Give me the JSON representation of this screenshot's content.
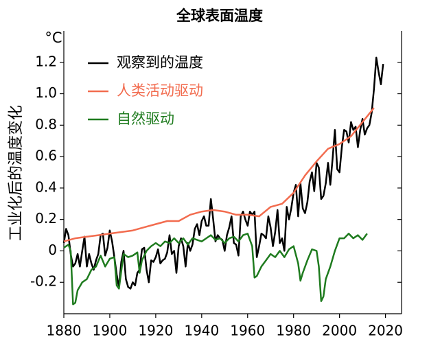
{
  "chart_data": {
    "type": "line",
    "title": "全球表面温度",
    "ylabel": "工业化后的温度变化",
    "yunit": "°C",
    "xlim": [
      1880,
      2027
    ],
    "ylim": [
      -0.4,
      1.4
    ],
    "xticks": [
      1880,
      1900,
      1920,
      1940,
      1960,
      1980,
      2000,
      2020
    ],
    "yticks": [
      -0.2,
      0,
      0.2,
      0.4,
      0.6,
      0.8,
      {
        "value": 1,
        "label": "1.0"
      },
      1.2
    ],
    "legend": "upper left",
    "series": [
      {
        "name": "观察到的温度",
        "color": "#000000",
        "x": [
          1880,
          1881,
          1882,
          1883,
          1884,
          1885,
          1886,
          1887,
          1888,
          1889,
          1890,
          1891,
          1892,
          1893,
          1894,
          1895,
          1896,
          1897,
          1898,
          1899,
          1900,
          1901,
          1902,
          1903,
          1904,
          1905,
          1906,
          1907,
          1908,
          1909,
          1910,
          1911,
          1912,
          1913,
          1914,
          1915,
          1916,
          1917,
          1918,
          1919,
          1920,
          1921,
          1922,
          1923,
          1924,
          1925,
          1926,
          1927,
          1928,
          1929,
          1930,
          1931,
          1932,
          1933,
          1934,
          1935,
          1936,
          1937,
          1938,
          1939,
          1940,
          1941,
          1942,
          1943,
          1944,
          1945,
          1946,
          1947,
          1948,
          1949,
          1950,
          1951,
          1952,
          1953,
          1954,
          1955,
          1956,
          1957,
          1958,
          1959,
          1960,
          1961,
          1962,
          1963,
          1964,
          1965,
          1966,
          1967,
          1968,
          1969,
          1970,
          1971,
          1972,
          1973,
          1974,
          1975,
          1976,
          1977,
          1978,
          1979,
          1980,
          1981,
          1982,
          1983,
          1984,
          1985,
          1986,
          1987,
          1988,
          1989,
          1990,
          1991,
          1992,
          1993,
          1994,
          1995,
          1996,
          1997,
          1998,
          1999,
          2000,
          2001,
          2002,
          2003,
          2004,
          2005,
          2006,
          2007,
          2008,
          2009,
          2010,
          2011,
          2012,
          2013,
          2014,
          2015,
          2016,
          2017,
          2018,
          2019
        ],
        "values": [
          0.05,
          0.14,
          0.1,
          -0.02,
          -0.1,
          -0.08,
          -0.02,
          -0.1,
          0.0,
          0.09,
          -0.1,
          -0.02,
          -0.08,
          -0.12,
          -0.06,
          -0.02,
          0.1,
          0.11,
          -0.03,
          0.02,
          0.13,
          0.06,
          -0.04,
          -0.15,
          -0.23,
          -0.07,
          0.0,
          -0.18,
          -0.23,
          -0.24,
          -0.2,
          -0.22,
          -0.14,
          -0.12,
          0.01,
          0.02,
          -0.12,
          -0.2,
          -0.06,
          -0.07,
          -0.04,
          0.01,
          -0.08,
          -0.06,
          -0.05,
          -0.01,
          0.1,
          -0.02,
          0.0,
          -0.14,
          0.03,
          0.08,
          0.03,
          -0.1,
          0.05,
          0.0,
          0.04,
          0.14,
          0.17,
          0.1,
          0.19,
          0.22,
          0.16,
          0.16,
          0.33,
          0.2,
          0.06,
          0.1,
          0.08,
          0.07,
          0.0,
          0.1,
          0.15,
          0.22,
          0.05,
          0.04,
          -0.03,
          0.22,
          0.25,
          0.2,
          0.16,
          0.25,
          0.23,
          0.25,
          -0.04,
          0.03,
          0.11,
          0.1,
          0.08,
          0.22,
          0.15,
          0.03,
          0.12,
          0.26,
          0.05,
          0.08,
          0.0,
          0.28,
          0.2,
          0.27,
          0.37,
          0.42,
          0.22,
          0.43,
          0.27,
          0.24,
          0.31,
          0.44,
          0.5,
          0.38,
          0.56,
          0.53,
          0.33,
          0.35,
          0.43,
          0.56,
          0.42,
          0.59,
          0.77,
          0.52,
          0.5,
          0.66,
          0.77,
          0.76,
          0.69,
          0.82,
          0.77,
          0.79,
          0.66,
          0.77,
          0.84,
          0.74,
          0.78,
          0.8,
          0.88,
          1.03,
          1.23,
          1.14,
          1.06,
          1.19
        ]
      },
      {
        "name": "人类活动驱动",
        "color": "#f26c4f",
        "x": [
          1880,
          1885,
          1890,
          1895,
          1900,
          1905,
          1910,
          1915,
          1920,
          1925,
          1930,
          1935,
          1940,
          1945,
          1950,
          1955,
          1960,
          1965,
          1970,
          1975,
          1980,
          1985,
          1990,
          1995,
          2000,
          2005,
          2010,
          2015
        ],
        "values": [
          0.06,
          0.08,
          0.09,
          0.1,
          0.11,
          0.12,
          0.13,
          0.15,
          0.17,
          0.19,
          0.19,
          0.23,
          0.25,
          0.26,
          0.25,
          0.23,
          0.23,
          0.22,
          0.28,
          0.3,
          0.37,
          0.48,
          0.57,
          0.65,
          0.68,
          0.73,
          0.82,
          0.91
        ]
      },
      {
        "name": "自然驱动",
        "color": "#1e7b1e",
        "x": [
          1880,
          1882,
          1883,
          1884,
          1885,
          1886,
          1888,
          1890,
          1892,
          1894,
          1896,
          1898,
          1900,
          1902,
          1903,
          1904,
          1906,
          1908,
          1910,
          1912,
          1913,
          1914,
          1916,
          1918,
          1920,
          1922,
          1924,
          1926,
          1928,
          1930,
          1932,
          1934,
          1936,
          1938,
          1940,
          1942,
          1944,
          1946,
          1948,
          1950,
          1952,
          1954,
          1956,
          1958,
          1960,
          1962,
          1963,
          1964,
          1966,
          1968,
          1970,
          1972,
          1974,
          1976,
          1978,
          1980,
          1982,
          1983,
          1984,
          1986,
          1988,
          1990,
          1991,
          1992,
          1993,
          1994,
          1996,
          1998,
          2000,
          2002,
          2004,
          2006,
          2008,
          2010,
          2012
        ],
        "values": [
          0.02,
          0.04,
          0.0,
          -0.34,
          -0.33,
          -0.25,
          -0.2,
          -0.18,
          -0.12,
          -0.1,
          -0.03,
          -0.1,
          -0.05,
          -0.04,
          -0.22,
          -0.24,
          -0.02,
          -0.04,
          -0.03,
          -0.01,
          -0.14,
          -0.06,
          0.0,
          0.03,
          0.05,
          0.03,
          0.06,
          0.05,
          0.08,
          0.05,
          0.08,
          0.04,
          0.08,
          0.07,
          0.06,
          0.08,
          0.1,
          0.07,
          0.08,
          0.05,
          0.08,
          0.09,
          0.06,
          0.1,
          0.11,
          0.03,
          -0.17,
          -0.16,
          -0.1,
          -0.06,
          -0.02,
          -0.04,
          0.0,
          -0.04,
          0.01,
          0.03,
          -0.08,
          -0.19,
          -0.14,
          -0.06,
          0.01,
          0.0,
          -0.1,
          -0.32,
          -0.29,
          -0.18,
          -0.1,
          0.0,
          0.08,
          0.08,
          0.11,
          0.08,
          0.1,
          0.07,
          0.11
        ]
      }
    ]
  }
}
